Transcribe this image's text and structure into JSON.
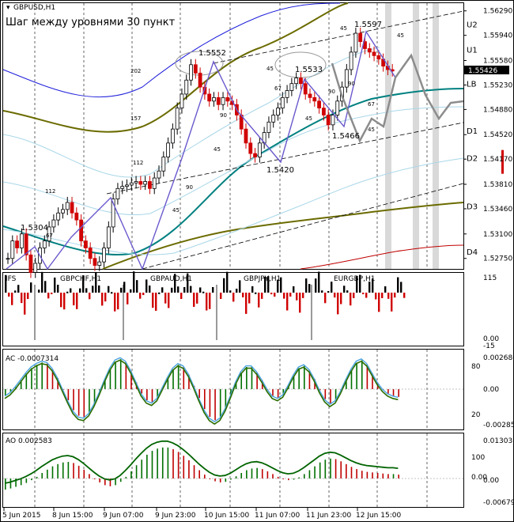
{
  "window": {
    "symbol_label": "GBPUSD,H1",
    "subtitle": "Шаг между уровнями 30 пункт",
    "current_price": "1.55426"
  },
  "chart_data": [
    {
      "type": "candlestick",
      "title": "GBPUSD,H1",
      "subtitle": "Шаг между уровнями 30 пункт",
      "ylim": [
        1.526,
        1.564
      ],
      "y_ticks": [
        "1.56290",
        "1.55940",
        "1.55580",
        "1.55230",
        "1.54880",
        "1.54520",
        "1.54170",
        "1.53810",
        "1.53460",
        "1.53100",
        "1.52750"
      ],
      "current_price": 1.55426,
      "x_ticks": [
        "5 Jun 2015",
        "8 Jun 15:00",
        "9 Jun 07:00",
        "9 Jun 23:00",
        "10 Jun 15:00",
        "11 Jun 07:00",
        "11 Jun 23:00",
        "12 Jun 15:00"
      ],
      "levels": [
        {
          "name": "U2",
          "price": 1.561
        },
        {
          "name": "U1",
          "price": 1.5574
        },
        {
          "name": "LB",
          "price": 1.5525
        },
        {
          "name": "D1",
          "price": 1.5458
        },
        {
          "name": "D2",
          "price": 1.5419
        },
        {
          "name": "D3",
          "price": 1.535
        },
        {
          "name": "D4",
          "price": 1.5285
        }
      ],
      "swing_points": [
        {
          "label": "1.5304",
          "price": 1.5304
        },
        {
          "label": "1.5552",
          "price": 1.5552
        },
        {
          "label": "1.5420",
          "price": 1.542
        },
        {
          "label": "1.5533",
          "price": 1.5533
        },
        {
          "label": "1.5466",
          "price": 1.5466
        },
        {
          "label": "1.5597",
          "price": 1.5597
        }
      ],
      "wave_counts": [
        "202",
        "157",
        "112",
        "112",
        "67",
        "90",
        "45",
        "45",
        "90",
        "67",
        "45",
        "45",
        "90",
        "45",
        "67",
        "90",
        "45",
        "45"
      ],
      "close": [
        1.5275,
        1.53,
        1.529,
        1.531,
        1.528,
        1.5255,
        1.5268,
        1.529,
        1.53,
        1.532,
        1.533,
        1.534,
        1.5345,
        1.5355,
        1.534,
        1.533,
        1.53,
        1.529,
        1.5275,
        1.5265,
        1.527,
        1.529,
        1.532,
        1.536,
        1.5375,
        1.5378,
        1.538,
        1.5383,
        1.5385,
        1.5381,
        1.5385,
        1.5375,
        1.539,
        1.54,
        1.542,
        1.544,
        1.546,
        1.549,
        1.551,
        1.553,
        1.5552,
        1.554,
        1.552,
        1.551,
        1.55,
        1.5505,
        1.5495,
        1.5505,
        1.55,
        1.5495,
        1.548,
        1.546,
        1.544,
        1.5425,
        1.542,
        1.544,
        1.5455,
        1.547,
        1.548,
        1.549,
        1.5505,
        1.5515,
        1.5525,
        1.5533,
        1.5525,
        1.551,
        1.5505,
        1.55,
        1.549,
        1.548,
        1.5466,
        1.548,
        1.55,
        1.552,
        1.5545,
        1.557,
        1.5597,
        1.5585,
        1.5575,
        1.557,
        1.5565,
        1.556,
        1.555,
        1.5545,
        1.5543
      ]
    },
    {
      "type": "bar",
      "title": "IFS",
      "panels": [
        "GBPCHF,H1",
        "GBPAUD,H1",
        "GBPJPY,H1",
        "EURGBP,H1"
      ],
      "y_ticks": [
        "115",
        "0.00",
        "-15"
      ]
    },
    {
      "type": "bar",
      "title": "AC -0.0007314",
      "value": -0.0007314,
      "y_ticks_right": [
        "0.002680",
        "0.00",
        "-0.002853"
      ],
      "y_ticks_left": [
        "80",
        "20"
      ],
      "values": [
        -0.6,
        -0.3,
        0.2,
        0.8,
        1.4,
        1.9,
        2.2,
        2.4,
        2.3,
        1.8,
        1.0,
        0.0,
        -1.0,
        -1.9,
        -2.4,
        -2.5,
        -2.1,
        -1.3,
        -0.3,
        0.8,
        1.8,
        2.5,
        2.7,
        2.4,
        1.6,
        0.6,
        -0.4,
        -1.0,
        -1.2,
        -0.8,
        0.1,
        1.0,
        1.8,
        2.2,
        2.0,
        1.3,
        0.3,
        -0.8,
        -1.8,
        -2.5,
        -2.8,
        -2.5,
        -1.7,
        -0.6,
        0.6,
        1.5,
        2.0,
        2.0,
        1.5,
        0.8,
        0.0,
        -0.6,
        -0.8,
        -0.5,
        0.3,
        1.2,
        1.9,
        2.1,
        1.7,
        0.9,
        -0.1,
        -0.9,
        -1.3,
        -1.0,
        -0.2,
        0.8,
        1.7,
        2.4,
        2.6,
        2.2,
        1.4,
        0.6,
        0.0,
        -0.4,
        -0.6,
        -0.7
      ]
    },
    {
      "type": "bar",
      "title": "AO 0.002583",
      "value": 0.002583,
      "y_ticks_right": [
        "0.013036",
        "0.00",
        "-0.006796"
      ],
      "y_ticks_left": [
        "100",
        "0.00"
      ],
      "values": [
        -2.0,
        -1.8,
        -1.5,
        -1.2,
        -0.8,
        -0.3,
        0.3,
        1.0,
        1.6,
        2.2,
        2.6,
        2.9,
        3.0,
        2.8,
        2.3,
        1.6,
        0.8,
        0.0,
        -0.7,
        -1.2,
        -1.4,
        -1.2,
        -0.6,
        0.3,
        1.3,
        2.4,
        3.4,
        4.3,
        5.0,
        5.4,
        5.6,
        5.6,
        5.3,
        4.8,
        4.1,
        3.3,
        2.4,
        1.5,
        0.7,
        0.0,
        -0.5,
        -0.7,
        -0.6,
        -0.2,
        0.4,
        1.0,
        1.5,
        1.8,
        1.9,
        1.7,
        1.3,
        0.8,
        0.3,
        -0.1,
        -0.3,
        -0.2,
        0.2,
        0.8,
        1.5,
        2.2,
        2.9,
        3.4,
        3.6,
        3.5,
        3.1,
        2.6,
        2.1,
        1.7,
        1.4,
        1.2,
        1.1,
        1.0,
        0.9,
        0.8,
        0.8,
        0.7
      ]
    }
  ]
}
